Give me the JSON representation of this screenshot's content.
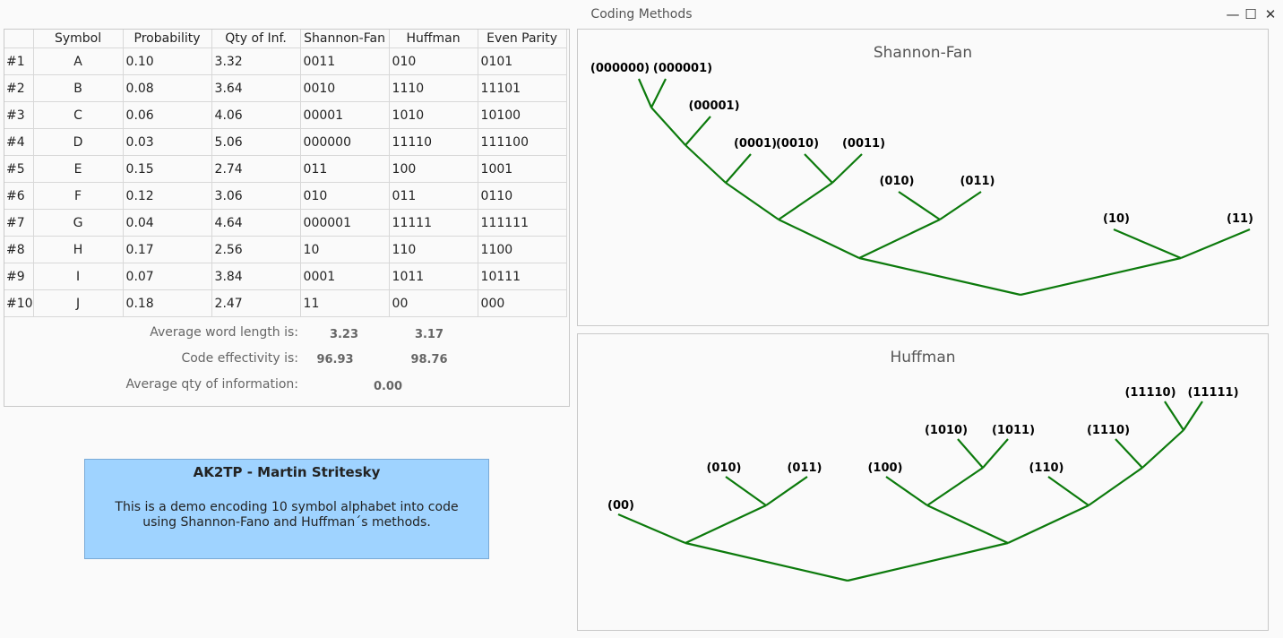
{
  "window": {
    "title": "Coding Methods",
    "minimize": "—",
    "maximize": "☐",
    "close": "✕"
  },
  "table": {
    "headers": [
      "",
      "Symbol",
      "Probability",
      "Qty of Inf.",
      "Shannon-Fan",
      "Huffman",
      "Even Parity"
    ],
    "rows": [
      {
        "index": "#1",
        "symbol": "A",
        "probability": "0.10",
        "qty": "3.32",
        "shannon": "0011",
        "huffman": "010",
        "parity": "0101"
      },
      {
        "index": "#2",
        "symbol": "B",
        "probability": "0.08",
        "qty": "3.64",
        "shannon": "0010",
        "huffman": "1110",
        "parity": "11101"
      },
      {
        "index": "#3",
        "symbol": "C",
        "probability": "0.06",
        "qty": "4.06",
        "shannon": "00001",
        "huffman": "1010",
        "parity": "10100"
      },
      {
        "index": "#4",
        "symbol": "D",
        "probability": "0.03",
        "qty": "5.06",
        "shannon": "000000",
        "huffman": "11110",
        "parity": "111100"
      },
      {
        "index": "#5",
        "symbol": "E",
        "probability": "0.15",
        "qty": "2.74",
        "shannon": "011",
        "huffman": "100",
        "parity": "1001"
      },
      {
        "index": "#6",
        "symbol": "F",
        "probability": "0.12",
        "qty": "3.06",
        "shannon": "010",
        "huffman": "011",
        "parity": "0110"
      },
      {
        "index": "#7",
        "symbol": "G",
        "probability": "0.04",
        "qty": "4.64",
        "shannon": "000001",
        "huffman": "11111",
        "parity": "111111"
      },
      {
        "index": "#8",
        "symbol": "H",
        "probability": "0.17",
        "qty": "2.56",
        "shannon": "10",
        "huffman": "110",
        "parity": "1100"
      },
      {
        "index": "#9",
        "symbol": "I",
        "probability": "0.07",
        "qty": "3.84",
        "shannon": "0001",
        "huffman": "1011",
        "parity": "10111"
      },
      {
        "index": "#10",
        "symbol": "J",
        "probability": "0.18",
        "qty": "2.47",
        "shannon": "11",
        "huffman": "00",
        "parity": "000"
      }
    ]
  },
  "summary": {
    "avg_len_label": "Average word length is:",
    "avg_len_shannon": "3.23",
    "avg_len_huffman": "3.17",
    "eff_label": "Code effectivity is:",
    "eff_shannon": "96.93",
    "eff_huffman": "98.76",
    "info_label": "Average qty of information:",
    "info_value": "0.00"
  },
  "info_box": {
    "heading": "AK2TP - Martin Stritesky",
    "text": "This is a demo encoding 10 symbol alphabet into code using Shannon-Fano and Huffman´s methods."
  },
  "trees": {
    "shannon": {
      "title": "Shannon-Fan",
      "labels": [
        "(000000)",
        "(000001)",
        "(00001)",
        "(0001)",
        "(0010)",
        "(0011)",
        "(010)",
        "(011)",
        "(10)",
        "(11)"
      ]
    },
    "huffman": {
      "title": "Huffman",
      "labels": [
        "(00)",
        "(010)",
        "(011)",
        "(100)",
        "(1010)",
        "(1011)",
        "(110)",
        "(1110)",
        "(11110)",
        "(11111)"
      ]
    }
  },
  "colors": {
    "edge": "#0c7a0c",
    "info_bg": "#9fd3ff"
  }
}
